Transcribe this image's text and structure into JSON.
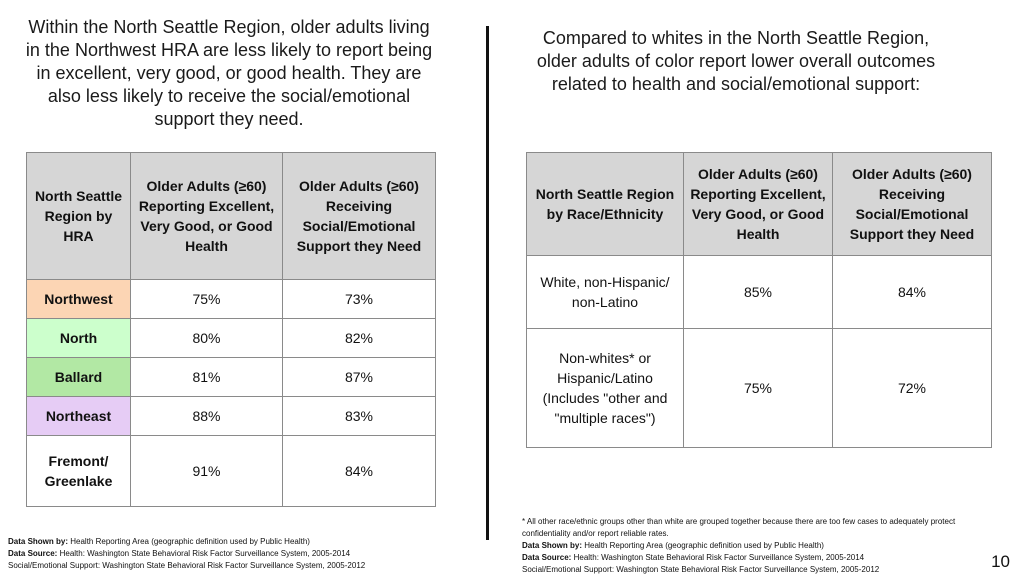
{
  "left_heading": "Within the North Seattle Region, older adults living in the Northwest HRA are less likely to report being in excellent, very good, or good health. They are also less likely to receive the social/emotional support they need.",
  "right_heading": "Compared to whites in the North Seattle Region, older adults of color report lower overall outcomes related to health and social/emotional support:",
  "hra_table": {
    "headers": [
      "North Seattle Region by HRA",
      "Older Adults (≥60) Reporting Excellent, Very Good, or Good Health",
      "Older Adults (≥60) Receiving Social/Emotional Support they Need"
    ],
    "rows": [
      {
        "region": "Northwest",
        "health": "75%",
        "support": "73%",
        "color": "#fcd5b4"
      },
      {
        "region": "North",
        "health": "80%",
        "support": "82%",
        "color": "#ccffcc"
      },
      {
        "region": "Ballard",
        "health": "81%",
        "support": "87%",
        "color": "#b2e8a4"
      },
      {
        "region": "Northeast",
        "health": "88%",
        "support": "83%",
        "color": "#e6ccf5"
      },
      {
        "region": "Fremont/ Greenlake",
        "health": "91%",
        "support": "84%",
        "color": "#ffffff"
      }
    ]
  },
  "race_table": {
    "headers": [
      "North Seattle Region by Race/Ethnicity",
      "Older Adults (≥60) Reporting Excellent, Very Good, or Good Health",
      "Older Adults (≥60) Receiving Social/Emotional Support they Need"
    ],
    "rows": [
      {
        "group": "White, non-Hispanic/ non-Latino",
        "health": "85%",
        "support": "84%"
      },
      {
        "group": "Non-whites* or Hispanic/Latino (Includes \"other and \"multiple races\")",
        "health": "75%",
        "support": "72%"
      }
    ]
  },
  "left_footer": {
    "shown_label": "Data Shown by:",
    "shown_value": "Health Reporting Area (geographic definition used by Public Health)",
    "source_label": "Data Source:",
    "source_value": "Health: Washington State Behavioral Risk Factor Surveillance System, 2005-2014",
    "source_line2": "Social/Emotional Support: Washington State Behavioral Risk Factor Surveillance System, 2005-2012"
  },
  "right_footer": {
    "note": "* All other race/ethnic groups other than white are grouped together because there are too few cases to adequately protect confidentiality and/or report reliable rates.",
    "shown_label": "Data Shown by:",
    "shown_value": "Health Reporting Area (geographic definition used by Public Health)",
    "source_label": "Data Source:",
    "source_value": "Health: Washington State Behavioral Risk Factor Surveillance System, 2005-2014",
    "source_line2": "Social/Emotional Support: Washington State Behavioral Risk Factor Surveillance System, 2005-2012"
  },
  "page_number": "10"
}
